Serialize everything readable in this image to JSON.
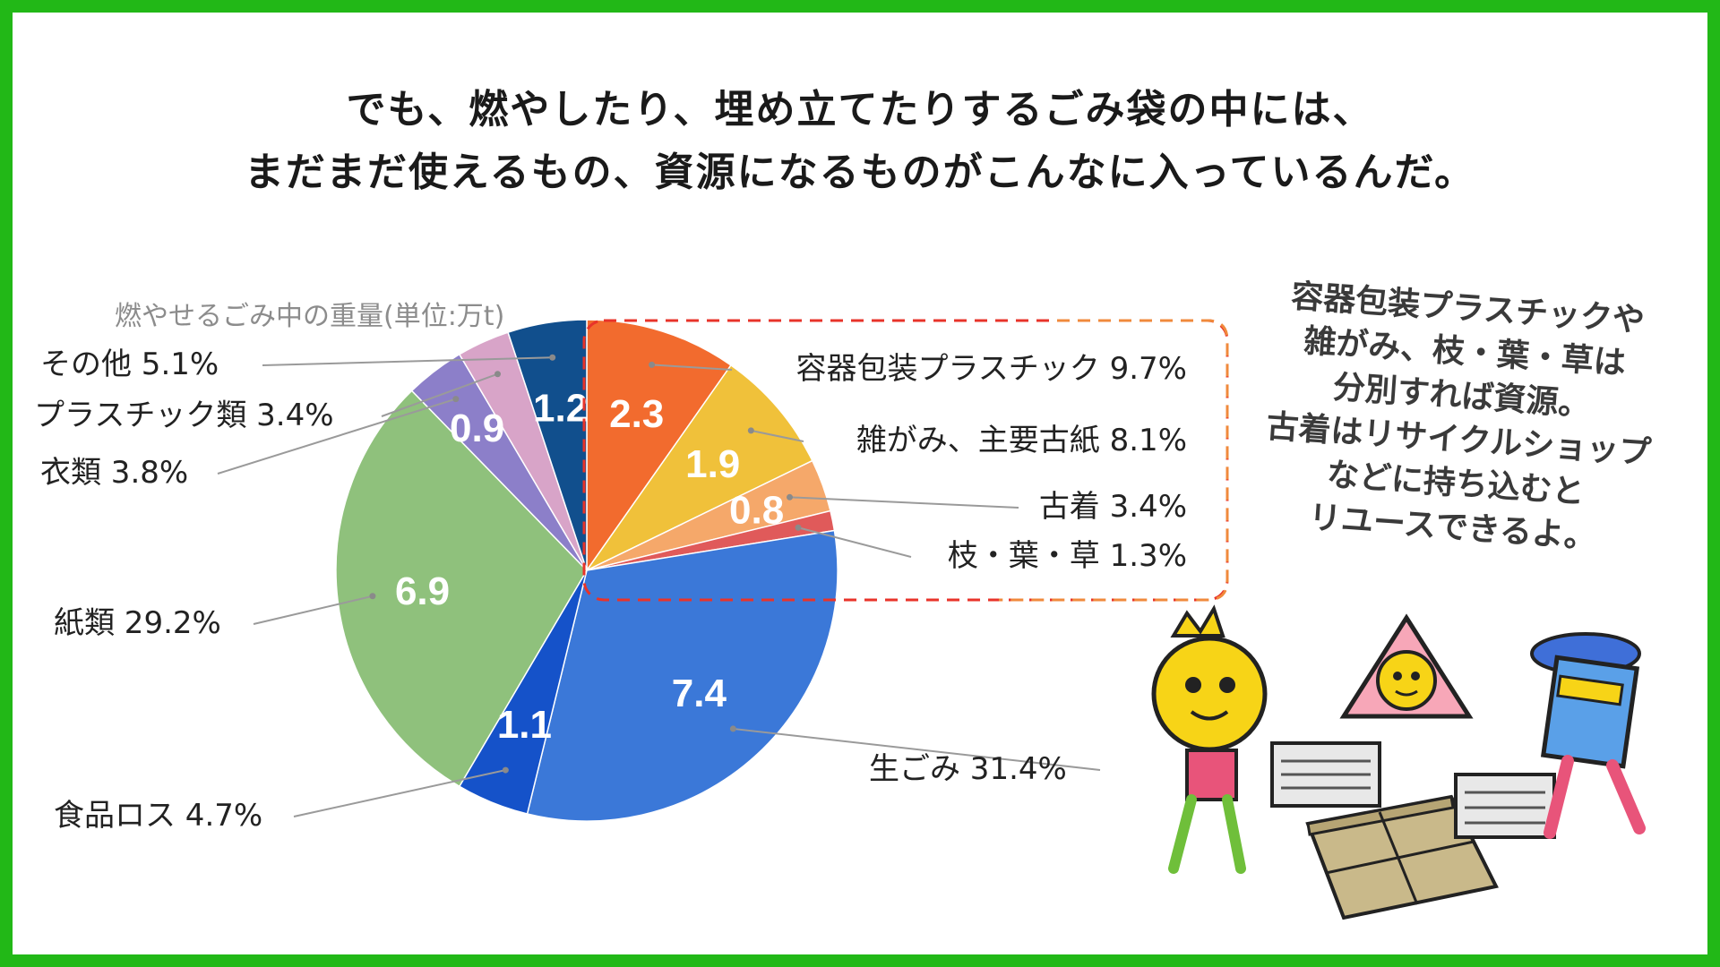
{
  "headline": {
    "line1": "でも、燃やしたり、埋め立てたりするごみ袋の中には、",
    "line2": "まだまだ使えるもの、資源になるものがこんなに入っているんだ。"
  },
  "colors": {
    "frame": "#22b817",
    "highlight_box": "#e8332a",
    "highlight_box_alt": "#f08a3c"
  },
  "side_note": {
    "lines": [
      "容器包装プラスチックや",
      "雑がみ、枝・葉・草は",
      "分別すれば資源。",
      "古着はリサイクルショップ",
      "などに持ち込むと",
      "リユースできるよ。"
    ]
  },
  "illustration": {
    "icon_names": [
      "lemon-mascot-icon",
      "recycle-mascot-icon",
      "box-mascot-icon",
      "newspaper-bundle-icon",
      "cardboard-bundle-icon"
    ]
  },
  "chart_data": {
    "type": "pie",
    "title": "燃やせるごみ中の重量(単位:万t)",
    "start_angle_deg": 0,
    "direction": "clockwise",
    "slices": [
      {
        "name": "容器包装プラスチック",
        "pct": "9.7%",
        "value": 2.3,
        "value_label": "2.3",
        "color": "#f26b2e",
        "highlighted": true
      },
      {
        "name": "雑がみ、主要古紙",
        "pct": "8.1%",
        "value": 1.9,
        "value_label": "1.9",
        "color": "#f0c13a",
        "highlighted": true
      },
      {
        "name": "古着",
        "pct": "3.4%",
        "value": 0.8,
        "value_label": "0.8",
        "color": "#f5a86a",
        "highlighted": true
      },
      {
        "name": "枝・葉・草",
        "pct": "1.3%",
        "value": 0.3,
        "value_label": "",
        "color": "#e05a5a",
        "highlighted": true
      },
      {
        "name": "生ごみ",
        "pct": "31.4%",
        "value": 7.4,
        "value_label": "7.4",
        "color": "#3b78d8",
        "highlighted": false
      },
      {
        "name": "食品ロス",
        "pct": "4.7%",
        "value": 1.1,
        "value_label": "1.1",
        "color": "#1552c9",
        "highlighted": false
      },
      {
        "name": "紙類",
        "pct": "29.2%",
        "value": 6.9,
        "value_label": "6.9",
        "color": "#8fc17c",
        "highlighted": false
      },
      {
        "name": "衣類",
        "pct": "3.8%",
        "value": 0.9,
        "value_label": "0.9",
        "color": "#8c7fc9",
        "highlighted": false
      },
      {
        "name": "プラスチック類",
        "pct": "3.4%",
        "value": 0.8,
        "value_label": "",
        "color": "#d8a4c8",
        "highlighted": false
      },
      {
        "name": "その他",
        "pct": "5.1%",
        "value": 1.2,
        "value_label": "1.2",
        "color": "#114f8d",
        "highlighted": false
      }
    ],
    "labels": [
      "容器包装プラスチック 9.7%",
      "雑がみ、主要古紙 8.1%",
      "古着 3.4%",
      "枝・葉・草 1.3%",
      "生ごみ 31.4%",
      "食品ロス 4.7%",
      "紙類 29.2%",
      "衣類 3.8%",
      "プラスチック類 3.4%",
      "その他 5.1%"
    ]
  }
}
